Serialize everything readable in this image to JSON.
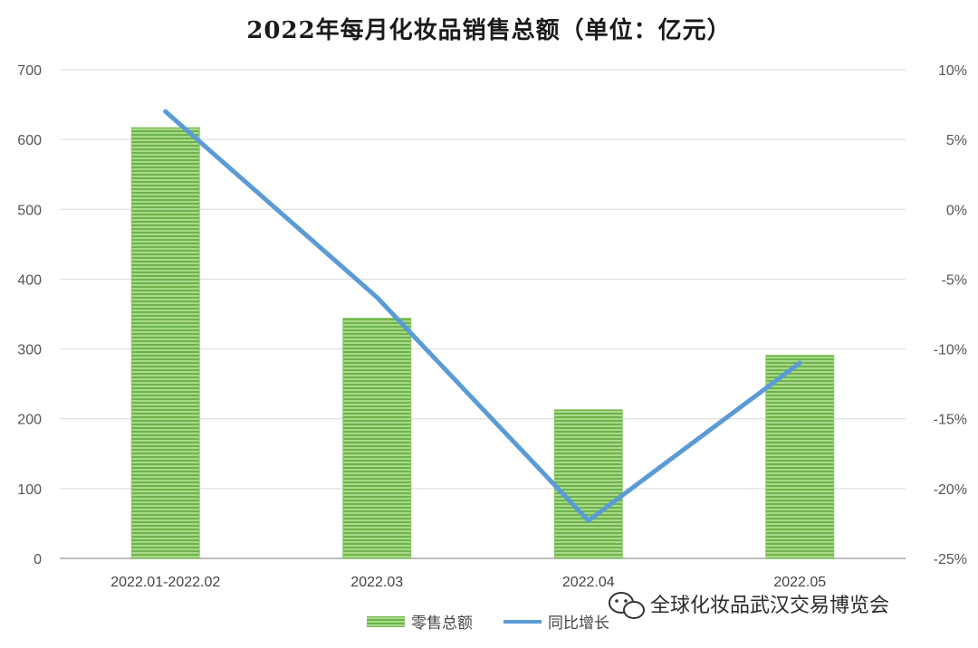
{
  "chart_data": {
    "type": "bar",
    "title": "2022年每月化妆品销售总额（单位：亿元）",
    "categories": [
      "2022.01-2022.02",
      "2022.03",
      "2022.04",
      "2022.05"
    ],
    "series": [
      {
        "name": "零售总额",
        "type": "bar",
        "axis": "left",
        "values": [
          617,
          344,
          213,
          291
        ],
        "color": "#7cc15a"
      },
      {
        "name": "同比增长",
        "type": "line",
        "axis": "right",
        "values": [
          7.0,
          -6.3,
          -22.3,
          -11.0
        ],
        "color": "#5b9bd5"
      }
    ],
    "left_axis": {
      "ylim": [
        0,
        700
      ],
      "ticks": [
        0,
        100,
        200,
        300,
        400,
        500,
        600,
        700
      ]
    },
    "right_axis": {
      "ylim": [
        -25,
        10
      ],
      "ticks": [
        -25,
        -20,
        -15,
        -10,
        -5,
        0,
        5,
        10
      ],
      "tick_labels": [
        "-25%",
        "-20%",
        "-15%",
        "-10%",
        "-5%",
        "0%",
        "5%",
        "10%"
      ]
    },
    "grid": true,
    "legend_position": "bottom"
  },
  "watermark": {
    "text": "全球化妆品武汉交易博览会",
    "icon": "wechat-icon"
  }
}
